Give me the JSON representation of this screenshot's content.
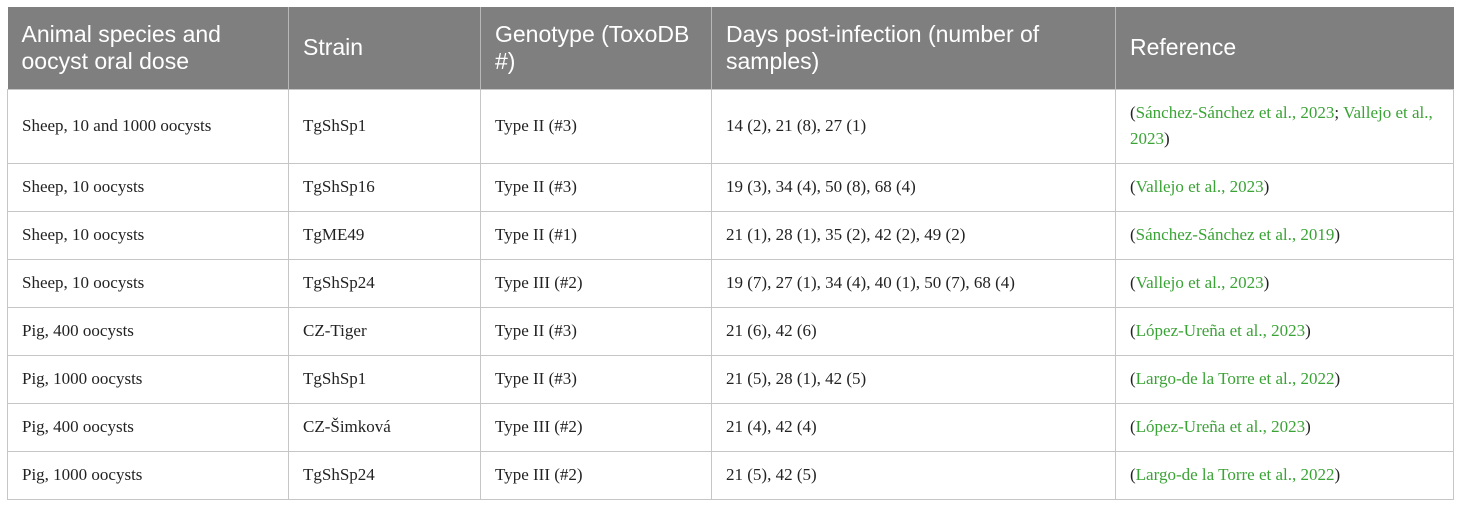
{
  "table": {
    "headers": [
      "Animal species and oocyst oral dose",
      "Strain",
      "Genotype (ToxoDB #)",
      "Days post-infection (number of samples)",
      "Reference"
    ],
    "rows": [
      {
        "species": "Sheep, 10 and 1000 oocysts",
        "strain": "TgShSp1",
        "genotype": "Type II (#3)",
        "days": "14 (2), 21 (8), 27 (1)",
        "reference": {
          "open": "(",
          "ref1": "Sánchez-Sánchez et al., 2023",
          "sep": "; ",
          "ref2": "Vallejo et al., 2023",
          "close": ")"
        }
      },
      {
        "species": "Sheep, 10 oocysts",
        "strain": "TgShSp16",
        "genotype": "Type II (#3)",
        "days": "19 (3), 34 (4), 50 (8), 68 (4)",
        "reference": {
          "open": "(",
          "ref1": "Vallejo et al., 2023",
          "close": ")"
        }
      },
      {
        "species": "Sheep, 10 oocysts",
        "strain": "TgME49",
        "genotype": "Type II (#1)",
        "days": "21 (1), 28 (1), 35 (2), 42 (2), 49 (2)",
        "reference": {
          "open": "(",
          "ref1": "Sánchez-Sánchez et al., 2019",
          "close": ")"
        }
      },
      {
        "species": "Sheep, 10 oocysts",
        "strain": "TgShSp24",
        "genotype": "Type III (#2)",
        "days": "19 (7), 27 (1), 34 (4), 40 (1), 50 (7), 68 (4)",
        "reference": {
          "open": "(",
          "ref1": "Vallejo et al., 2023",
          "close": ")"
        }
      },
      {
        "species": "Pig, 400 oocysts",
        "strain": "CZ-Tiger",
        "genotype": "Type II (#3)",
        "days": "21 (6), 42 (6)",
        "reference": {
          "open": "(",
          "ref1": "López-Ureña et al., 2023",
          "close": ")"
        }
      },
      {
        "species": "Pig, 1000 oocysts",
        "strain": "TgShSp1",
        "genotype": "Type II (#3)",
        "days": "21 (5), 28 (1), 42 (5)",
        "reference": {
          "open": "(",
          "ref1": "Largo-de la Torre et al., 2022",
          "close": ")"
        }
      },
      {
        "species": "Pig, 400 oocysts",
        "strain": "CZ-Šimková",
        "genotype": "Type III (#2)",
        "days": "21 (4), 42 (4)",
        "reference": {
          "open": "(",
          "ref1": "López-Ureña et al., 2023",
          "close": ")"
        }
      },
      {
        "species": "Pig, 1000 oocysts",
        "strain": "TgShSp24",
        "genotype": "Type III (#2)",
        "days": "21 (5), 42 (5)",
        "reference": {
          "open": "(",
          "ref1": "Largo-de la Torre et al., 2022",
          "close": ")"
        }
      }
    ]
  }
}
